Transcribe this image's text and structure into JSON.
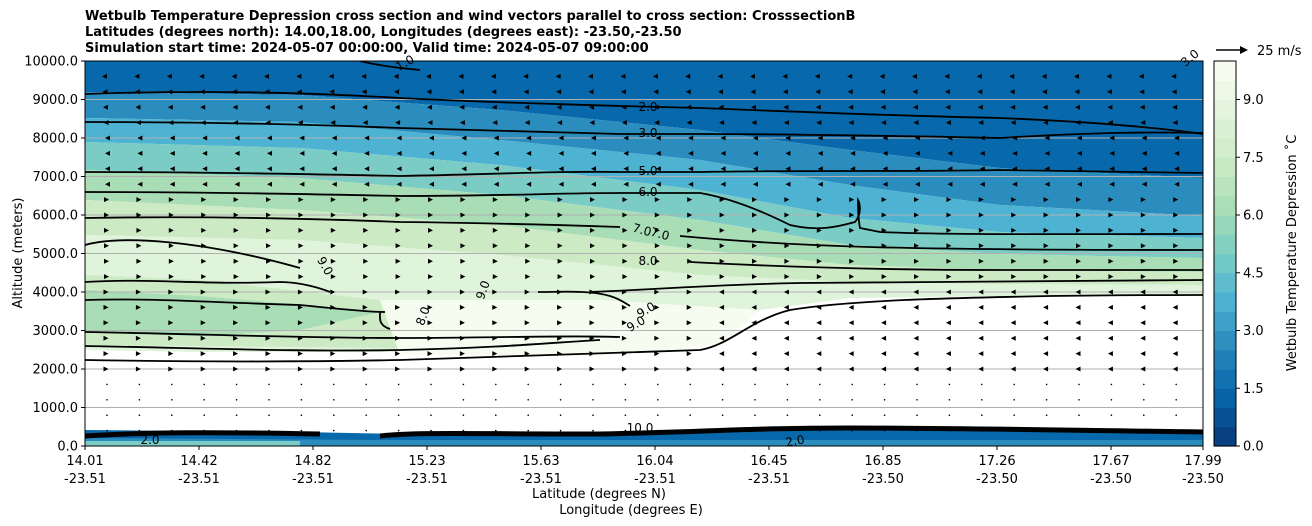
{
  "chart_data": {
    "type": "heatmap",
    "title_lines": [
      "Wetbulb Temperature Depression cross section and wind vectors parallel to cross section: CrosssectionB",
      "Latitudes (degrees north): 14.00,18.00, Longitudes (degrees east): -23.50,-23.50",
      "Simulation start time: 2024-05-07 00:00:00, Valid time: 2024-05-07 09:00:00"
    ],
    "ylabel": "Altitude (meters)",
    "xlabel_lat": "Latitude (degrees N)",
    "xlabel_lon": "Longitude (degrees E)",
    "ylim": [
      0,
      10000
    ],
    "yticks": [
      "0.0",
      "1000.0",
      "2000.0",
      "3000.0",
      "4000.0",
      "5000.0",
      "6000.0",
      "7000.0",
      "8000.0",
      "9000.0",
      "10000.0"
    ],
    "xticks_lat": [
      "14.01",
      "14.42",
      "14.82",
      "15.23",
      "15.63",
      "16.04",
      "16.45",
      "16.85",
      "17.26",
      "17.67",
      "17.99"
    ],
    "xticks_lon": [
      "-23.51",
      "-23.51",
      "-23.51",
      "-23.51",
      "-23.51",
      "-23.51",
      "-23.51",
      "-23.50",
      "-23.50",
      "-23.50",
      "-23.50"
    ],
    "colorbar": {
      "label": "Wetbulb Temperature Depression ˚C",
      "ticks": [
        "0.0",
        "1.5",
        "3.0",
        "4.5",
        "6.0",
        "7.5",
        "9.0"
      ],
      "range": [
        0,
        10
      ],
      "colors": [
        "#084081",
        "#0868ac",
        "#2b8cbe",
        "#4eb3d3",
        "#7bccc4",
        "#a8ddb5",
        "#ccebc5",
        "#e0f3db",
        "#f7fcf0"
      ]
    },
    "wind_key": {
      "label": "25 m/s"
    },
    "contour_labels": [
      "1.0",
      "2.0",
      "3.0",
      "5.0",
      "6.0",
      "7.0",
      "7.0",
      "8.0",
      "9.0",
      "9.0",
      "9.0",
      "8.0",
      "9.0",
      "10.0",
      "2.0",
      "3.0",
      "2.0"
    ]
  }
}
